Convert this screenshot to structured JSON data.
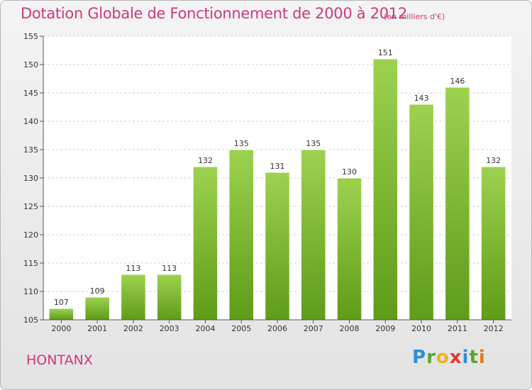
{
  "header": {
    "title": "Dotation Globale de Fonctionnement de 2000 à 2012",
    "subtitle": "(en milliers d'€)"
  },
  "commune": "HONTANX",
  "logo": {
    "text": "Proxiti",
    "colors": [
      "#2f8fd6",
      "#56a72e",
      "#f0b21c",
      "#e3363a",
      "#2f8fd6",
      "#56a72e",
      "#e37c1c"
    ]
  },
  "chart_data": {
    "type": "bar",
    "categories": [
      "2000",
      "2001",
      "2002",
      "2003",
      "2004",
      "2005",
      "2006",
      "2007",
      "2008",
      "2009",
      "2010",
      "2011",
      "2012"
    ],
    "values": [
      107,
      109,
      113,
      113,
      132,
      135,
      131,
      135,
      130,
      151,
      143,
      146,
      132
    ],
    "title": "Dotation Globale de Fonctionnement de 2000 à 2012",
    "subtitle": "(en milliers d'€)",
    "xlabel": "",
    "ylabel": "",
    "ylim": [
      105,
      155
    ],
    "yticks": [
      105,
      110,
      115,
      120,
      125,
      130,
      135,
      140,
      145,
      150,
      155
    ],
    "grid": true,
    "bar_color": "#8cc63f",
    "bar_color_dark": "#5b9a18"
  }
}
